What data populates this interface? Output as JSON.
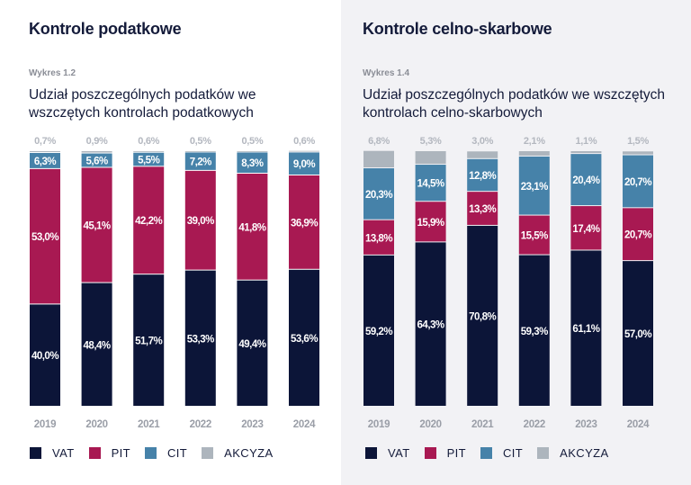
{
  "colors": {
    "VAT": "#0c1538",
    "PIT": "#a81952",
    "CIT": "#4682a9",
    "AKCYZA": "#adb5bd"
  },
  "legend": [
    "VAT",
    "PIT",
    "CIT",
    "AKCYZA"
  ],
  "left": {
    "heading": "Kontrole podatkowe",
    "figure_label": "Wykres 1.2",
    "subtitle": "Udział poszczególnych podatków we wszczętych kontrolach podatkowych"
  },
  "right": {
    "heading": "Kontrole celno-skarbowe",
    "figure_label": "Wykres 1.4",
    "subtitle": "Udział poszczególnych podatków we wszczętych kontrolach celno-skarbowych"
  },
  "chart_data": [
    {
      "type": "bar",
      "stacked": true,
      "title": "Udział poszczególnych podatków we wszczętych kontrolach podatkowych",
      "categories": [
        "2019",
        "2020",
        "2021",
        "2022",
        "2023",
        "2024"
      ],
      "series": [
        {
          "name": "VAT",
          "values": [
            40.0,
            48.4,
            51.7,
            53.3,
            49.4,
            53.6
          ],
          "labels": [
            "40,0%",
            "48,4%",
            "51,7%",
            "53,3%",
            "49,4%",
            "53,6%"
          ]
        },
        {
          "name": "PIT",
          "values": [
            53.0,
            45.1,
            42.2,
            39.0,
            41.8,
            36.9
          ],
          "labels": [
            "53,0%",
            "45,1%",
            "42,2%",
            "39,0%",
            "41,8%",
            "36,9%"
          ]
        },
        {
          "name": "CIT",
          "values": [
            6.3,
            5.6,
            5.5,
            7.2,
            8.3,
            9.0
          ],
          "labels": [
            "6,3%",
            "5,6%",
            "5,5%",
            "7,2%",
            "8,3%",
            "9,0%"
          ]
        },
        {
          "name": "AKCYZA",
          "values": [
            0.7,
            0.9,
            0.6,
            0.5,
            0.5,
            0.6
          ],
          "labels": [
            "0,7%",
            "0,9%",
            "0,6%",
            "0,5%",
            "0,5%",
            "0,6%"
          ]
        }
      ],
      "ylim": [
        0,
        100
      ],
      "legend_position": "bottom-left",
      "grid": false
    },
    {
      "type": "bar",
      "stacked": true,
      "title": "Udział poszczególnych podatków we wszczętych kontrolach celno-skarbowych",
      "categories": [
        "2019",
        "2020",
        "2021",
        "2022",
        "2023",
        "2024"
      ],
      "series": [
        {
          "name": "VAT",
          "values": [
            59.2,
            64.3,
            70.8,
            59.3,
            61.1,
            57.0
          ],
          "labels": [
            "59,2%",
            "64,3%",
            "70,8%",
            "59,3%",
            "61,1%",
            "57,0%"
          ]
        },
        {
          "name": "PIT",
          "values": [
            13.8,
            15.9,
            13.3,
            15.5,
            17.4,
            20.7
          ],
          "labels": [
            "13,8%",
            "15,9%",
            "13,3%",
            "15,5%",
            "17,4%",
            "20,7%"
          ]
        },
        {
          "name": "CIT",
          "values": [
            20.3,
            14.5,
            12.8,
            23.1,
            20.4,
            20.7
          ],
          "labels": [
            "20,3%",
            "14,5%",
            "12,8%",
            "23,1%",
            "20,4%",
            "20,7%"
          ]
        },
        {
          "name": "AKCYZA",
          "values": [
            6.8,
            5.3,
            3.0,
            2.1,
            1.1,
            1.5
          ],
          "labels": [
            "6,8%",
            "5,3%",
            "3,0%",
            "2,1%",
            "1,1%",
            "1,5%"
          ]
        }
      ],
      "ylim": [
        0,
        100
      ],
      "legend_position": "bottom-left",
      "grid": false
    }
  ]
}
